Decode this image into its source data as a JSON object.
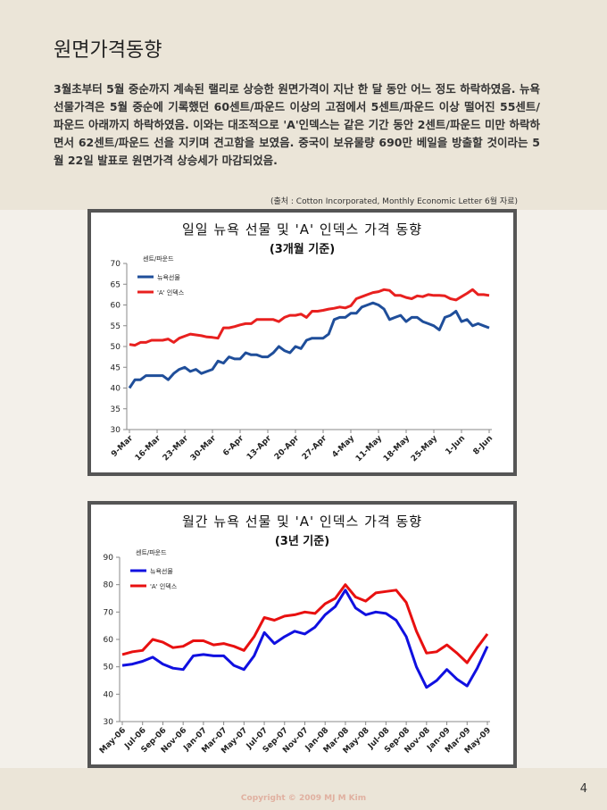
{
  "title": "원면가격동향",
  "body": "3월초부터 5월 중순까지 계속된 랠리로 상승한 원면가격이 지난 한 달 동안 어느 정도 하락하였음. 뉴욕 선물가격은 5월 중순에 기록했던 60센트/파운드 이상의 고점에서 5센트/파운드 이상 떨어진 55센트/파운드 아래까지 하락하였음. 이와는 대조적으로 'A'인덱스는 같은 기간 동안 2센트/파운드 미만 하락하면서 62센트/파운드 선을 지키며 견고함을 보였음. 중국이 보유물량 690만 베일을 방출할 것이라는 5월 22일 발표로 원면가격 상승세가 마감되었음.",
  "source": "(출처 : Cotton Incorporated, Monthly Economic Letter 6월 자료)",
  "chart_data": [
    {
      "type": "line",
      "title": "일일 뉴욕 선물 및 'A' 인덱스 가격 동향",
      "subtitle": "(3개월 기준)",
      "y_label": "센트/파운드",
      "legend": "upper-left",
      "categories": [
        "9-Mar",
        null,
        null,
        null,
        null,
        "16-Mar",
        null,
        null,
        null,
        null,
        "23-Mar",
        null,
        null,
        null,
        null,
        "30-Mar",
        null,
        null,
        null,
        null,
        "6-Apr",
        null,
        null,
        null,
        null,
        "13-Apr",
        null,
        null,
        null,
        null,
        "20-Apr",
        null,
        null,
        null,
        null,
        "27-Apr",
        null,
        null,
        null,
        null,
        "4-May",
        null,
        null,
        null,
        null,
        "11-May",
        null,
        null,
        null,
        null,
        "18-May",
        null,
        null,
        null,
        null,
        "25-May",
        null,
        null,
        null,
        null,
        "1-Jun",
        null,
        null,
        null,
        null,
        "8-Jun"
      ],
      "series": [
        {
          "name": "뉴욕선물",
          "color": "#1f4e9a",
          "values": [
            40,
            42,
            42,
            43,
            43,
            43,
            43,
            42,
            43.5,
            44.5,
            45,
            44,
            44.5,
            43.5,
            44,
            44.5,
            46.5,
            46,
            47.5,
            47,
            47,
            48.5,
            48,
            48,
            47.5,
            47.5,
            48.5,
            50,
            49,
            48.5,
            50,
            49.5,
            51.5,
            52,
            52,
            52,
            53,
            56.5,
            57,
            57,
            58,
            58,
            59.5,
            60,
            60.5,
            60,
            59,
            56.5,
            57,
            57.5,
            56,
            57,
            57,
            56,
            55.5,
            55,
            54,
            57,
            57.5,
            58.5,
            56,
            56.5,
            55,
            55.5,
            55,
            54.5
          ]
        },
        {
          "name": "'A' 인덱스",
          "color": "#e8201f",
          "values": [
            50.5,
            50.3,
            51,
            51,
            51.5,
            51.5,
            51.5,
            51.8,
            51,
            52,
            52.5,
            53,
            52.8,
            52.6,
            52.3,
            52.2,
            52,
            54.5,
            54.5,
            54.8,
            55.2,
            55.5,
            55.5,
            56.5,
            56.5,
            56.5,
            56.5,
            56,
            57,
            57.5,
            57.5,
            57.8,
            57,
            58.5,
            58.5,
            58.7,
            59,
            59.2,
            59.5,
            59.3,
            59.8,
            61.5,
            62,
            62.5,
            63,
            63.2,
            63.7,
            63.5,
            62.3,
            62.3,
            61.8,
            61.5,
            62.2,
            62,
            62.5,
            62.3,
            62.3,
            62.2,
            61.5,
            61.2,
            62,
            62.8,
            63.7,
            62.5,
            62.5,
            62.3
          ]
        }
      ],
      "ylim": [
        30,
        70
      ],
      "yticks": [
        30,
        35,
        40,
        45,
        50,
        55,
        60,
        65,
        70
      ]
    },
    {
      "type": "line",
      "title": "월간 뉴욕 선물 및 'A' 인덱스 가격 동향",
      "subtitle": "(3년 기준)",
      "y_label": "센트/파운드",
      "legend": "upper-left",
      "categories": [
        "May-06",
        null,
        "Jul-06",
        null,
        "Sep-06",
        null,
        "Nov-06",
        null,
        "Jan-07",
        null,
        "Mar-07",
        null,
        "May-07",
        null,
        "Jul-07",
        null,
        "Sep-07",
        null,
        "Nov-07",
        null,
        "Jan-08",
        null,
        "Mar-08",
        null,
        "May-08",
        null,
        "Jul-08",
        null,
        "Sep-08",
        null,
        "Nov-08",
        null,
        "Jan-09",
        null,
        "Mar-09",
        null,
        "May-09"
      ],
      "series": [
        {
          "name": "뉴욕선물",
          "color": "#1010e0",
          "values": [
            50.5,
            51,
            52,
            53.5,
            51,
            49.5,
            49,
            54,
            54.5,
            54,
            54,
            50.5,
            49,
            54,
            62.5,
            58.5,
            61,
            63,
            62,
            64.5,
            69,
            72,
            78,
            71.5,
            69,
            70,
            69.5,
            67,
            61,
            50,
            42.5,
            45,
            49,
            45.5,
            43,
            49.5,
            57.5
          ]
        },
        {
          "name": "'A' 인덱스",
          "color": "#e81010",
          "values": [
            54.5,
            55.5,
            56,
            60,
            59,
            57,
            57.5,
            59.5,
            59.5,
            58,
            58.5,
            57.5,
            56,
            61,
            68,
            67,
            68.5,
            69,
            70,
            69.5,
            73,
            75,
            80,
            75.5,
            74,
            77,
            77.5,
            78,
            73.5,
            63,
            55,
            55.5,
            58,
            55,
            51.5,
            57,
            62
          ]
        }
      ],
      "ylim": [
        30,
        90
      ],
      "yticks": [
        30,
        40,
        50,
        60,
        70,
        80,
        90
      ]
    }
  ],
  "page_number": "4",
  "copyright": "Copyright © 2009 MJ M Kim"
}
